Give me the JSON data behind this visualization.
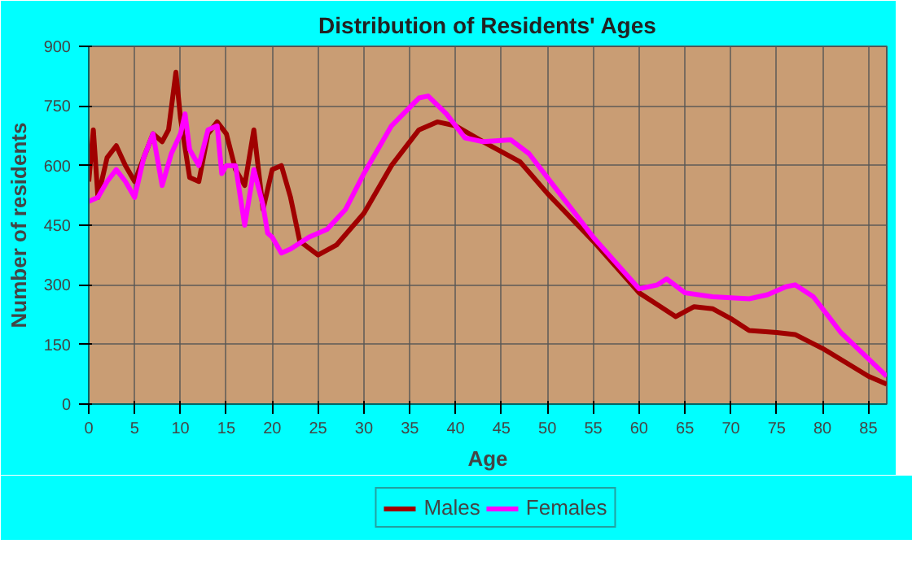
{
  "chart_data": {
    "type": "line",
    "title": "Distribution of Residents' Ages",
    "xlabel": "Age",
    "ylabel": "Number of residents",
    "xlim": [
      0,
      87
    ],
    "ylim": [
      0,
      900
    ],
    "xticks": [
      0,
      5,
      10,
      15,
      20,
      25,
      30,
      35,
      40,
      45,
      50,
      55,
      60,
      65,
      70,
      75,
      80,
      85
    ],
    "yticks": [
      0,
      150,
      300,
      450,
      600,
      750,
      900
    ],
    "grid": true,
    "legend": "bottom",
    "line_style": "solid",
    "marker": "none",
    "series": [
      {
        "name": "Males",
        "color": "#a00000",
        "x": [
          0,
          0.5,
          1,
          2,
          3,
          4,
          5,
          6,
          7,
          8,
          8.7,
          9.5,
          10,
          11,
          12,
          13,
          14,
          15,
          16,
          17,
          18,
          19,
          20,
          21,
          22,
          23,
          25,
          27,
          30,
          33,
          36,
          38,
          40,
          43,
          47,
          50,
          55,
          60,
          62,
          64,
          66,
          68,
          70,
          72,
          75,
          77,
          80,
          85,
          87
        ],
        "values": [
          560,
          690,
          520,
          620,
          650,
          600,
          560,
          620,
          680,
          660,
          690,
          835,
          720,
          570,
          560,
          680,
          710,
          680,
          590,
          550,
          690,
          490,
          590,
          600,
          520,
          410,
          375,
          400,
          480,
          600,
          690,
          710,
          700,
          660,
          610,
          530,
          410,
          280,
          250,
          220,
          245,
          240,
          215,
          185,
          180,
          175,
          140,
          70,
          50
        ]
      },
      {
        "name": "Females",
        "color": "#ff00ff",
        "x": [
          0,
          1,
          2,
          3,
          4,
          5,
          6,
          7,
          8,
          9,
          10,
          10.5,
          11,
          12,
          13,
          14,
          14.5,
          15,
          16,
          17,
          18,
          19,
          19.5,
          20,
          21,
          22,
          24,
          26,
          28,
          30,
          33,
          36,
          37,
          39,
          41,
          43,
          46,
          48,
          50,
          55,
          60,
          62,
          63,
          65,
          68,
          72,
          74,
          76,
          77,
          79,
          82,
          87
        ],
        "values": [
          510,
          520,
          560,
          590,
          560,
          520,
          620,
          680,
          550,
          630,
          680,
          730,
          640,
          600,
          690,
          700,
          580,
          600,
          600,
          450,
          590,
          500,
          430,
          420,
          380,
          390,
          420,
          440,
          490,
          580,
          700,
          770,
          775,
          730,
          670,
          660,
          665,
          630,
          570,
          420,
          290,
          300,
          315,
          280,
          270,
          265,
          275,
          295,
          300,
          270,
          180,
          70
        ]
      }
    ]
  }
}
